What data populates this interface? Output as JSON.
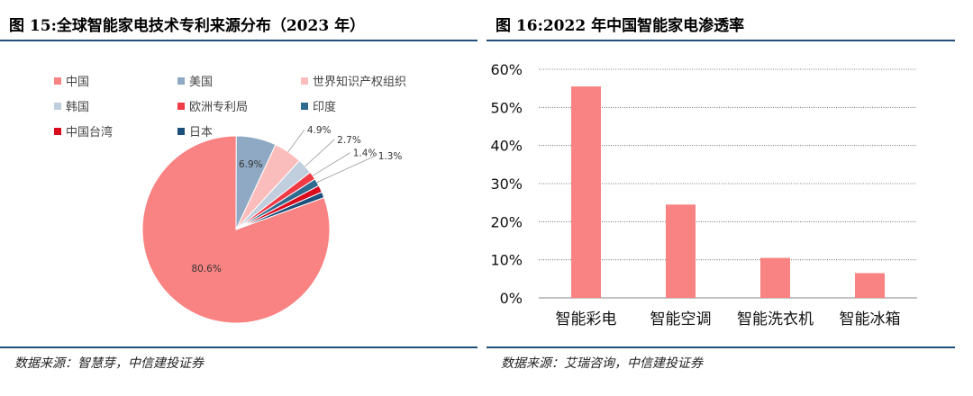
{
  "left": {
    "title": "图 15:全球智能家电技术专利来源分布（2023 年）",
    "source": "数据来源：智慧芽，中信建投证券"
  },
  "right": {
    "title": "图 16:2022 年中国智能家电渗透率",
    "source": "数据来源：艾瑞咨询，中信建投证券"
  },
  "chart_data": [
    {
      "type": "pie",
      "categories": [
        "中国",
        "美国",
        "世界知识产权组织",
        "韩国",
        "欧洲专利局",
        "印度",
        "中国台湾",
        "日本"
      ],
      "values": [
        80.6,
        6.9,
        4.9,
        2.7,
        1.4,
        1.3,
        1.2,
        1.0
      ],
      "data_labels": [
        "80.6%",
        "6.9%",
        "4.9%",
        "2.7%",
        "1.4%",
        "1.3%",
        "",
        ""
      ],
      "colors": [
        "#f98282",
        "#8fa9c4",
        "#fbbcbc",
        "#c0cedd",
        "#f03a46",
        "#2f6a8f",
        "#d90b1d",
        "#1b4f7c"
      ],
      "legend_position": "top"
    },
    {
      "type": "bar",
      "categories": [
        "智能彩电",
        "智能空调",
        "智能洗衣机",
        "智能冰箱"
      ],
      "values": [
        55.5,
        24.5,
        10.5,
        6.5
      ],
      "yticks": [
        "0%",
        "10%",
        "20%",
        "30%",
        "40%",
        "50%",
        "60%"
      ],
      "ylim": [
        0,
        60
      ],
      "grid": true,
      "color": "#f98282"
    }
  ]
}
